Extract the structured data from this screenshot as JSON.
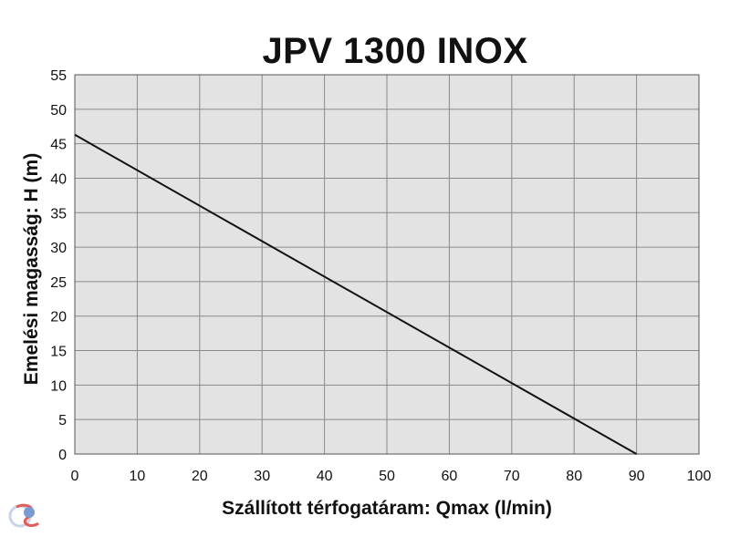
{
  "chart_data": {
    "type": "line",
    "title": "JPV 1300 INOX",
    "xlabel": "Szállított térfogatáram: Qmax (l/min)",
    "ylabel": "Emelési magasság: H (m)",
    "xlim": [
      0,
      100
    ],
    "ylim": [
      0,
      55
    ],
    "xticks": [
      "0",
      "10",
      "20",
      "30",
      "40",
      "50",
      "60",
      "70",
      "80",
      "90",
      "100"
    ],
    "yticks": [
      "0",
      "5",
      "10",
      "15",
      "20",
      "25",
      "30",
      "35",
      "40",
      "45",
      "50",
      "55"
    ],
    "grid": true,
    "series": [
      {
        "x": [
          0,
          90
        ],
        "y": [
          46.3,
          0
        ]
      }
    ],
    "colors": {
      "plot_background": "#e3e3e3",
      "grid": "#8a8a8a",
      "line": "#111111"
    }
  },
  "watermark_icon": "logo-icon"
}
